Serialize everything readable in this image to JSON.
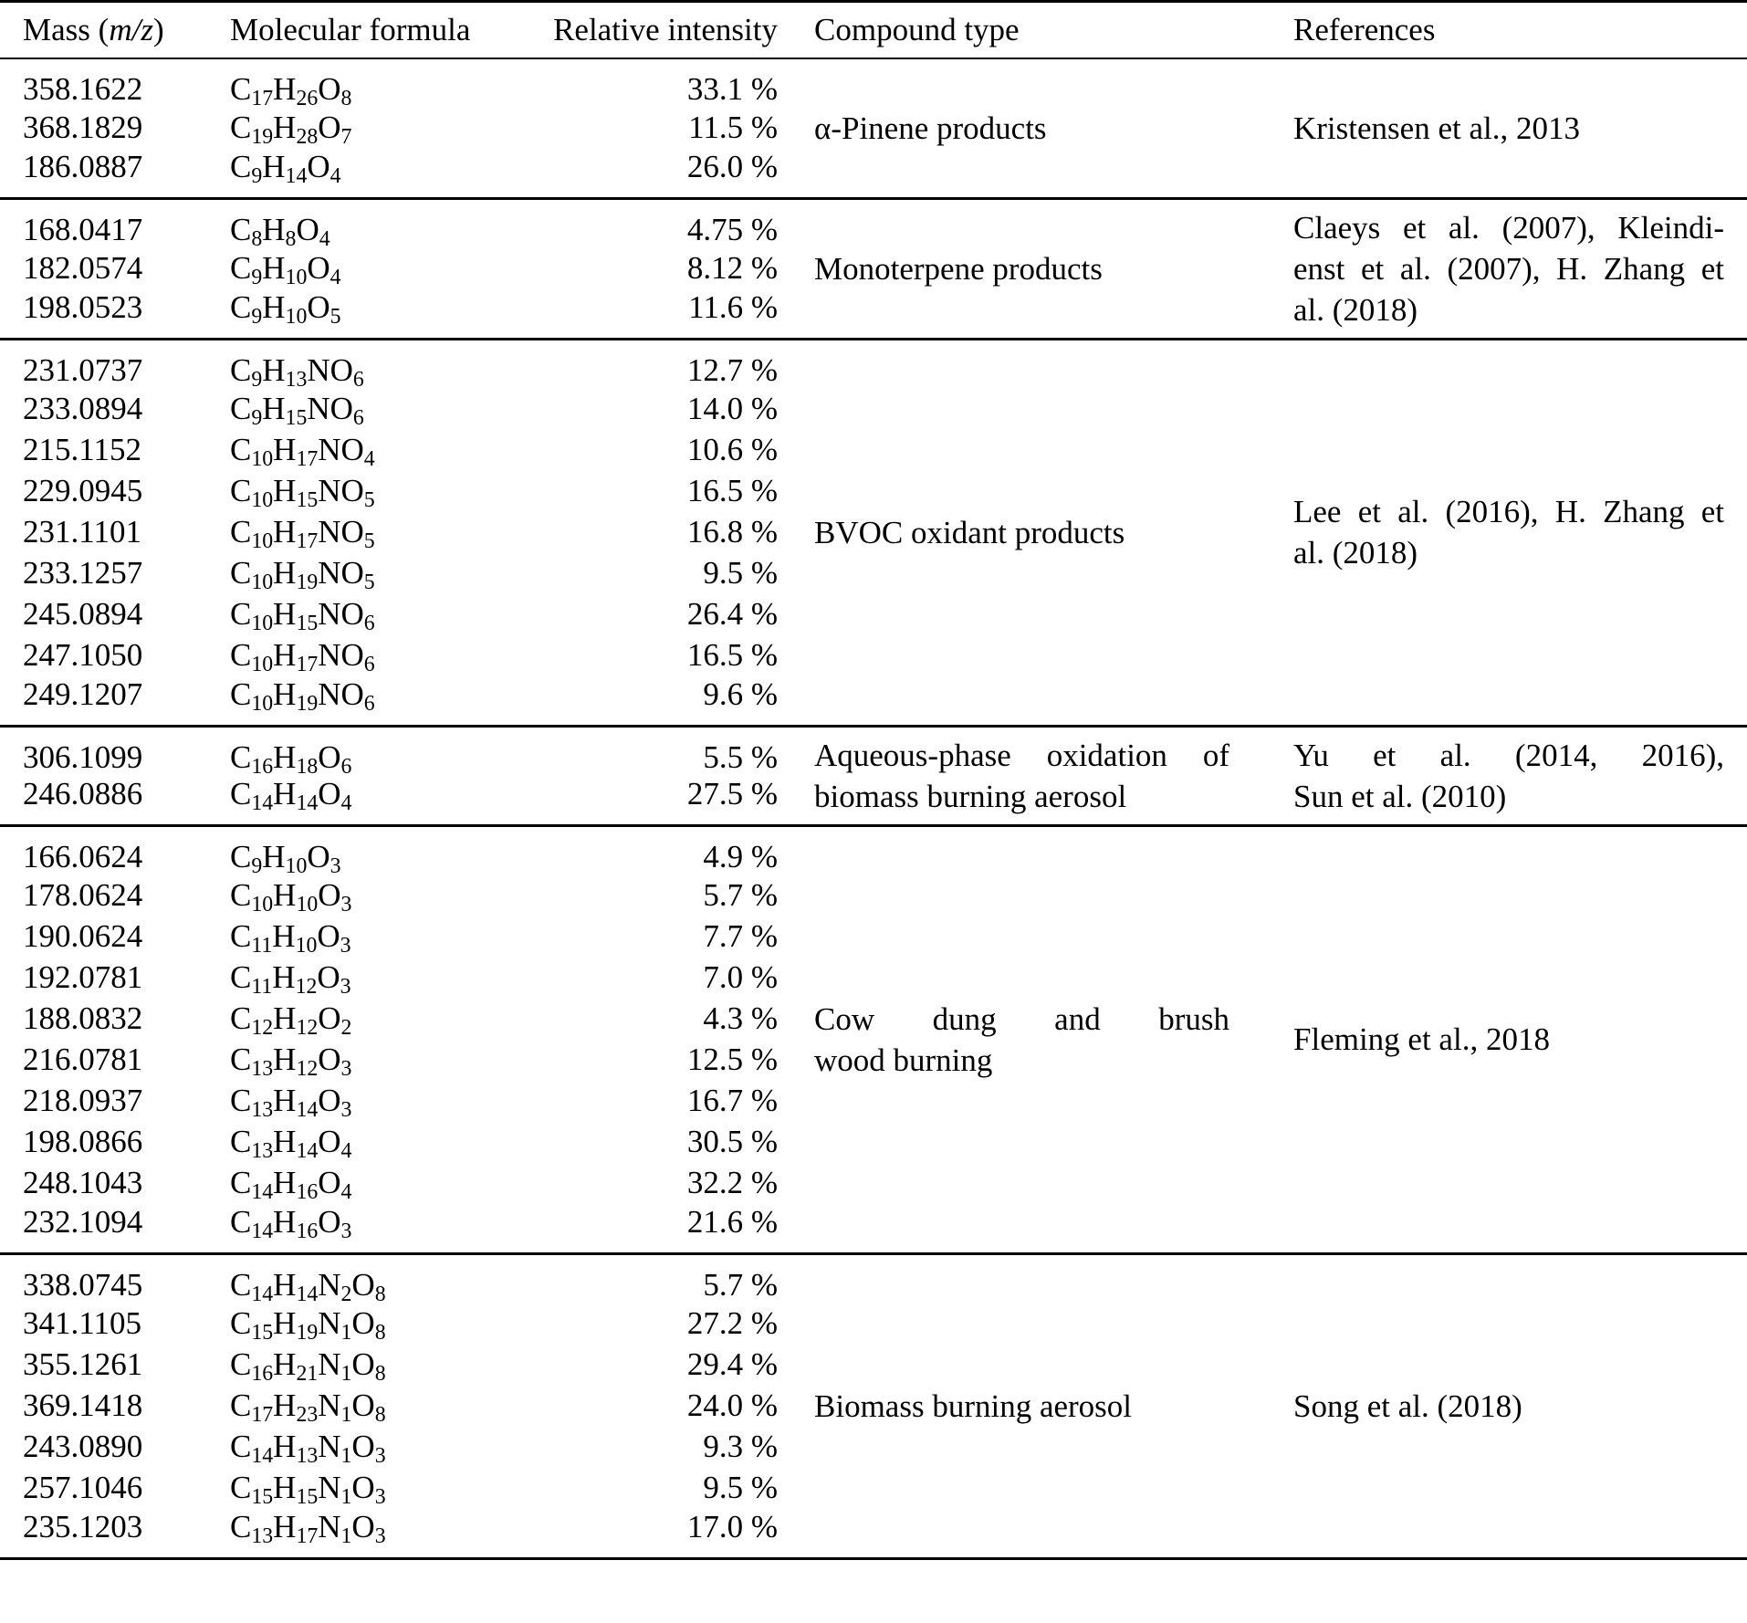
{
  "colors": {
    "text": "#000000",
    "background": "#ffffff",
    "rule": "#000000"
  },
  "table": {
    "headers": {
      "mass_pre": "Mass (",
      "mass_italic": "m/z",
      "mass_post": ")",
      "formula": "Molecular formula",
      "intensity": "Relative intensity",
      "compound": "Compound type",
      "references": "References"
    },
    "groups": [
      {
        "rows": [
          {
            "mass": "358.1622",
            "formula": "C17H26O8",
            "intensity": "33.1 %"
          },
          {
            "mass": "368.1829",
            "formula": "C19H28O7",
            "intensity": "11.5 %"
          },
          {
            "mass": "186.0887",
            "formula": "C9H14O4",
            "intensity": "26.0 %"
          }
        ],
        "compound_lines": [
          {
            "text": "α-Pinene products",
            "justify": false
          }
        ],
        "reference_lines": [
          {
            "text": "Kristensen et al., 2013",
            "justify": false
          }
        ]
      },
      {
        "rows": [
          {
            "mass": "168.0417",
            "formula": "C8H8O4",
            "intensity": "4.75 %"
          },
          {
            "mass": "182.0574",
            "formula": "C9H10O4",
            "intensity": "8.12 %"
          },
          {
            "mass": "198.0523",
            "formula": "C9H10O5",
            "intensity": "11.6 %"
          }
        ],
        "compound_lines": [
          {
            "text": "Monoterpene products",
            "justify": false
          }
        ],
        "reference_lines": [
          {
            "text": "Claeys et al. (2007), Kleindi-",
            "justify": true
          },
          {
            "text": "enst et al. (2007), H. Zhang et",
            "justify": true
          },
          {
            "text": "al. (2018)",
            "justify": false
          }
        ]
      },
      {
        "rows": [
          {
            "mass": "231.0737",
            "formula": "C9H13NO6",
            "intensity": "12.7 %"
          },
          {
            "mass": "233.0894",
            "formula": "C9H15NO6",
            "intensity": "14.0 %"
          },
          {
            "mass": "215.1152",
            "formula": "C10H17NO4",
            "intensity": "10.6 %"
          },
          {
            "mass": "229.0945",
            "formula": "C10H15NO5",
            "intensity": "16.5 %"
          },
          {
            "mass": "231.1101",
            "formula": "C10H17NO5",
            "intensity": "16.8 %"
          },
          {
            "mass": "233.1257",
            "formula": "C10H19NO5",
            "intensity": "9.5 %"
          },
          {
            "mass": "245.0894",
            "formula": "C10H15NO6",
            "intensity": "26.4 %"
          },
          {
            "mass": "247.1050",
            "formula": "C10H17NO6",
            "intensity": "16.5 %"
          },
          {
            "mass": "249.1207",
            "formula": "C10H19NO6",
            "intensity": "9.6 %"
          }
        ],
        "compound_lines": [
          {
            "text": "BVOC oxidant products",
            "justify": false
          }
        ],
        "reference_lines": [
          {
            "text": "Lee et al. (2016), H. Zhang et",
            "justify": true
          },
          {
            "text": "al. (2018)",
            "justify": false
          }
        ]
      },
      {
        "rows": [
          {
            "mass": "306.1099",
            "formula": "C16H18O6",
            "intensity": "5.5 %"
          },
          {
            "mass": "246.0886",
            "formula": "C14H14O4",
            "intensity": "27.5 %"
          }
        ],
        "compound_lines": [
          {
            "text": "Aqueous-phase oxidation of",
            "justify": true
          },
          {
            "text": "biomass burning aerosol",
            "justify": false
          }
        ],
        "reference_lines": [
          {
            "text": "Yu et al. (2014, 2016),",
            "justify": true
          },
          {
            "text": "Sun et al. (2010)",
            "justify": false
          }
        ]
      },
      {
        "rows": [
          {
            "mass": "166.0624",
            "formula": "C9H10O3",
            "intensity": "4.9 %"
          },
          {
            "mass": "178.0624",
            "formula": "C10H10O3",
            "intensity": "5.7 %"
          },
          {
            "mass": "190.0624",
            "formula": "C11H10O3",
            "intensity": "7.7 %"
          },
          {
            "mass": "192.0781",
            "formula": "C11H12O3",
            "intensity": "7.0 %"
          },
          {
            "mass": "188.0832",
            "formula": "C12H12O2",
            "intensity": "4.3 %"
          },
          {
            "mass": "216.0781",
            "formula": "C13H12O3",
            "intensity": "12.5 %"
          },
          {
            "mass": "218.0937",
            "formula": "C13H14O3",
            "intensity": "16.7 %"
          },
          {
            "mass": "198.0866",
            "formula": "C13H14O4",
            "intensity": "30.5 %"
          },
          {
            "mass": "248.1043",
            "formula": "C14H16O4",
            "intensity": "32.2 %"
          },
          {
            "mass": "232.1094",
            "formula": "C14H16O3",
            "intensity": "21.6 %"
          }
        ],
        "compound_lines": [
          {
            "text": "Cow dung and brush",
            "justify": true
          },
          {
            "text": "wood burning",
            "justify": false
          }
        ],
        "reference_lines": [
          {
            "text": "Fleming et al., 2018",
            "justify": false
          }
        ]
      },
      {
        "rows": [
          {
            "mass": "338.0745",
            "formula": "C14H14N2O8",
            "intensity": "5.7 %"
          },
          {
            "mass": "341.1105",
            "formula": "C15H19N1O8",
            "intensity": "27.2 %"
          },
          {
            "mass": "355.1261",
            "formula": "C16H21N1O8",
            "intensity": "29.4 %"
          },
          {
            "mass": "369.1418",
            "formula": "C17H23N1O8",
            "intensity": "24.0 %"
          },
          {
            "mass": "243.0890",
            "formula": "C14H13N1O3",
            "intensity": "9.3 %"
          },
          {
            "mass": "257.1046",
            "formula": "C15H15N1O3",
            "intensity": "9.5 %"
          },
          {
            "mass": "235.1203",
            "formula": "C13H17N1O3",
            "intensity": "17.0 %"
          }
        ],
        "compound_lines": [
          {
            "text": "Biomass burning aerosol",
            "justify": false
          }
        ],
        "reference_lines": [
          {
            "text": "Song et al. (2018)",
            "justify": false
          }
        ]
      }
    ]
  }
}
